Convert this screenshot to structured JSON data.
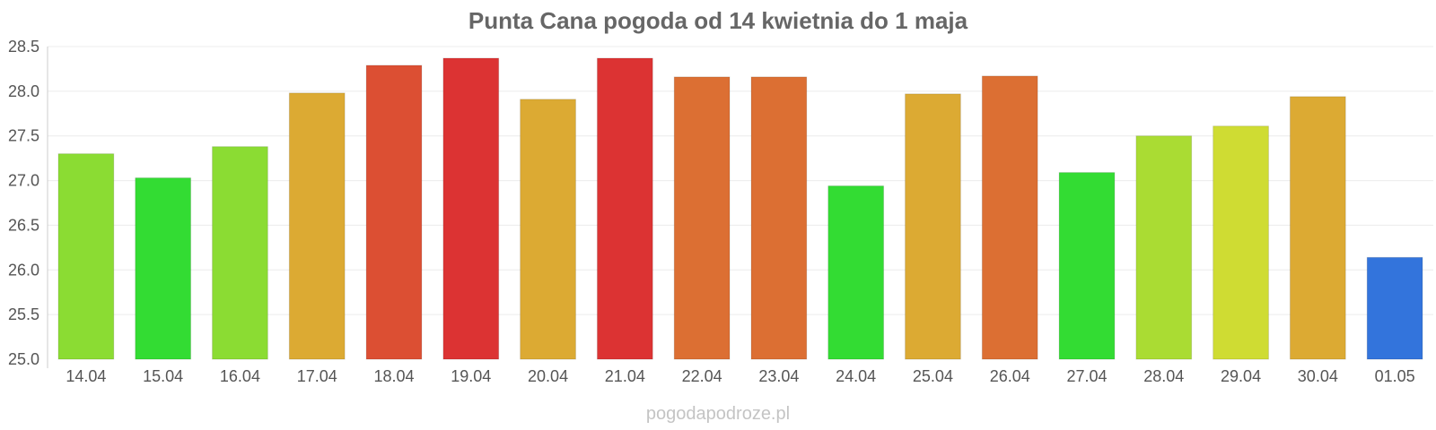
{
  "chart_data": {
    "type": "bar",
    "title": "Punta Cana pogoda od 14 kwietnia do 1 maja",
    "xlabel": "",
    "ylabel": "",
    "categories": [
      "14.04",
      "15.04",
      "16.04",
      "17.04",
      "18.04",
      "19.04",
      "20.04",
      "21.04",
      "22.04",
      "23.04",
      "24.04",
      "25.04",
      "26.04",
      "27.04",
      "28.04",
      "29.04",
      "30.04",
      "01.05"
    ],
    "values": [
      27.3,
      27.03,
      27.38,
      27.98,
      28.29,
      28.37,
      27.91,
      28.37,
      28.16,
      28.16,
      26.94,
      27.97,
      28.17,
      27.09,
      27.5,
      27.61,
      27.94,
      26.14
    ],
    "colors": [
      "#8bdc33",
      "#33dc33",
      "#8bdc33",
      "#dcaa33",
      "#dc4f33",
      "#dc3333",
      "#dcaa33",
      "#dc3333",
      "#dc6f33",
      "#dc6f33",
      "#33dc33",
      "#dcaa33",
      "#dc6f33",
      "#33dc33",
      "#aadc33",
      "#cfdc33",
      "#dcaa33",
      "#3374dc"
    ],
    "ylim": [
      25.0,
      28.5
    ],
    "yticks": [
      "25.0",
      "25.5",
      "26.0",
      "26.5",
      "27.0",
      "27.5",
      "28.0",
      "28.5"
    ],
    "grid": true,
    "legend": "none"
  },
  "watermark": "pogodapodroze.pl"
}
